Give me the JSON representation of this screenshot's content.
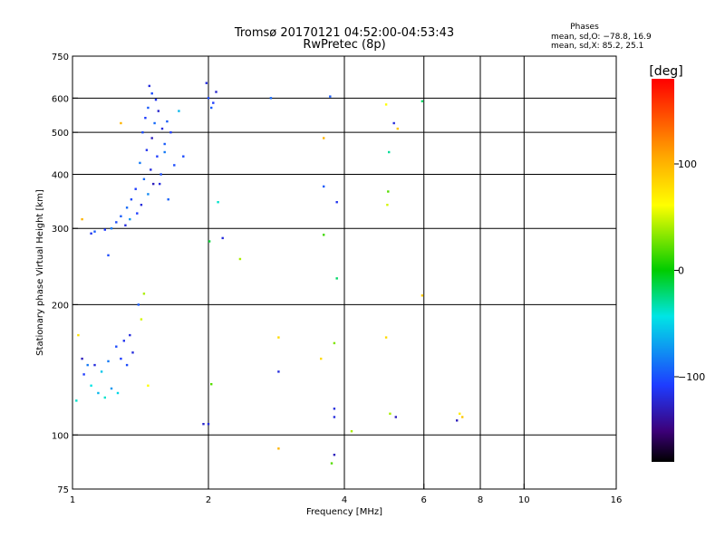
{
  "chart_data": {
    "type": "scatter",
    "title": "Tromsø 20170121 04:52:00-04:53:43",
    "subtitle": "RwPretec (8p)",
    "xlabel": "Frequency [MHz]",
    "ylabel": "Stationary phase Virtual Height [km]",
    "x_scale": "log",
    "y_scale": "log",
    "xlim": [
      1,
      16
    ],
    "ylim": [
      75,
      750
    ],
    "x_ticks": [
      1,
      2,
      4,
      6,
      8,
      10,
      16
    ],
    "x_tick_labels": [
      "1",
      "2",
      "4",
      "6",
      "8",
      "10",
      "16"
    ],
    "y_ticks": [
      75,
      100,
      200,
      300,
      400,
      500,
      600,
      750
    ],
    "y_tick_labels": [
      "75",
      "100",
      "200",
      "300",
      "400",
      "500",
      "600",
      "750"
    ],
    "grid": true,
    "stats": {
      "heading": "Phases",
      "lines": [
        "mean, sd,O: −78.8, 16.9",
        "mean, sd,X: 85.2, 25.1"
      ]
    },
    "colorbar": {
      "title": "[deg]",
      "range": [
        -180,
        180
      ],
      "ticks": [
        100,
        0,
        -100
      ],
      "tick_labels": [
        "100",
        "0",
        "−100"
      ]
    },
    "points": [
      [
        1.48,
        640,
        -110
      ],
      [
        1.5,
        615,
        -95
      ],
      [
        1.53,
        595,
        -105
      ],
      [
        1.47,
        570,
        -90
      ],
      [
        1.55,
        560,
        -115
      ],
      [
        1.45,
        540,
        -100
      ],
      [
        1.52,
        525,
        -85
      ],
      [
        1.58,
        510,
        -110
      ],
      [
        1.43,
        500,
        -95
      ],
      [
        1.5,
        485,
        -120
      ],
      [
        1.6,
        470,
        -90
      ],
      [
        1.46,
        455,
        -105
      ],
      [
        1.54,
        440,
        -100
      ],
      [
        1.41,
        425,
        -80
      ],
      [
        1.49,
        410,
        -110
      ],
      [
        1.57,
        400,
        -95
      ],
      [
        1.44,
        390,
        -85
      ],
      [
        1.51,
        380,
        -120
      ],
      [
        1.38,
        370,
        -100
      ],
      [
        1.47,
        360,
        -75
      ],
      [
        1.35,
        350,
        -95
      ],
      [
        1.42,
        340,
        -110
      ],
      [
        1.32,
        335,
        -85
      ],
      [
        1.39,
        325,
        -100
      ],
      [
        1.28,
        320,
        -90
      ],
      [
        1.34,
        315,
        -70
      ],
      [
        1.25,
        310,
        -95
      ],
      [
        1.31,
        305,
        -110
      ],
      [
        1.22,
        300,
        -80
      ],
      [
        1.18,
        298,
        -100
      ],
      [
        1.12,
        295,
        -90
      ],
      [
        1.1,
        292,
        -105
      ],
      [
        1.62,
        530,
        -90
      ],
      [
        1.65,
        500,
        -100
      ],
      [
        1.6,
        450,
        -80
      ],
      [
        1.68,
        420,
        -95
      ],
      [
        1.56,
        380,
        -110
      ],
      [
        1.63,
        350,
        -88
      ],
      [
        1.2,
        260,
        -95
      ],
      [
        1.72,
        560,
        -60
      ],
      [
        1.76,
        440,
        -95
      ],
      [
        1.98,
        650,
        -110
      ],
      [
        2.0,
        600,
        -95
      ],
      [
        2.05,
        585,
        -100
      ],
      [
        2.03,
        570,
        -90
      ],
      [
        2.08,
        620,
        -115
      ],
      [
        2.75,
        600,
        -85
      ],
      [
        3.72,
        605,
        -90
      ],
      [
        2.1,
        345,
        -40
      ],
      [
        2.15,
        285,
        -110
      ],
      [
        2.01,
        280,
        -10
      ],
      [
        2.35,
        255,
        40
      ],
      [
        3.6,
        375,
        -90
      ],
      [
        3.85,
        345,
        -105
      ],
      [
        3.6,
        290,
        15
      ],
      [
        3.85,
        230,
        -20
      ],
      [
        4.95,
        580,
        60
      ],
      [
        5.15,
        525,
        -110
      ],
      [
        5.25,
        510,
        90
      ],
      [
        5.02,
        450,
        -30
      ],
      [
        5.0,
        365,
        20
      ],
      [
        4.98,
        340,
        50
      ],
      [
        5.95,
        590,
        -20
      ],
      [
        5.95,
        210,
        90
      ],
      [
        3.6,
        485,
        100
      ],
      [
        1.05,
        315,
        100
      ],
      [
        1.28,
        525,
        100
      ],
      [
        1.4,
        200,
        -90
      ],
      [
        1.44,
        212,
        40
      ],
      [
        1.42,
        185,
        50
      ],
      [
        1.12,
        145,
        -110
      ],
      [
        1.16,
        140,
        -55
      ],
      [
        1.2,
        148,
        -80
      ],
      [
        1.1,
        130,
        -45
      ],
      [
        1.14,
        125,
        -60
      ],
      [
        1.18,
        122,
        -40
      ],
      [
        1.08,
        145,
        -80
      ],
      [
        1.06,
        138,
        -100
      ],
      [
        1.25,
        160,
        -95
      ],
      [
        1.3,
        165,
        -105
      ],
      [
        1.34,
        170,
        -110
      ],
      [
        1.28,
        150,
        -100
      ],
      [
        1.32,
        145,
        -95
      ],
      [
        1.36,
        155,
        -110
      ],
      [
        1.22,
        128,
        -70
      ],
      [
        1.26,
        125,
        -50
      ],
      [
        1.03,
        170,
        75
      ],
      [
        1.02,
        120,
        -40
      ],
      [
        1.05,
        150,
        -120
      ],
      [
        1.47,
        130,
        60
      ],
      [
        2.86,
        168,
        80
      ],
      [
        2.86,
        140,
        -110
      ],
      [
        2.86,
        93,
        100
      ],
      [
        3.55,
        150,
        80
      ],
      [
        3.8,
        163,
        30
      ],
      [
        3.8,
        115,
        -110
      ],
      [
        3.8,
        110,
        -110
      ],
      [
        3.8,
        90,
        -120
      ],
      [
        3.75,
        86,
        20
      ],
      [
        4.15,
        102,
        40
      ],
      [
        4.95,
        168,
        80
      ],
      [
        5.05,
        112,
        40
      ],
      [
        5.2,
        110,
        -120
      ],
      [
        7.2,
        112,
        70
      ],
      [
        7.3,
        110,
        90
      ],
      [
        7.1,
        108,
        -120
      ],
      [
        1.95,
        106,
        -115
      ],
      [
        2.0,
        106,
        -110
      ],
      [
        2.03,
        131,
        20
      ]
    ]
  }
}
